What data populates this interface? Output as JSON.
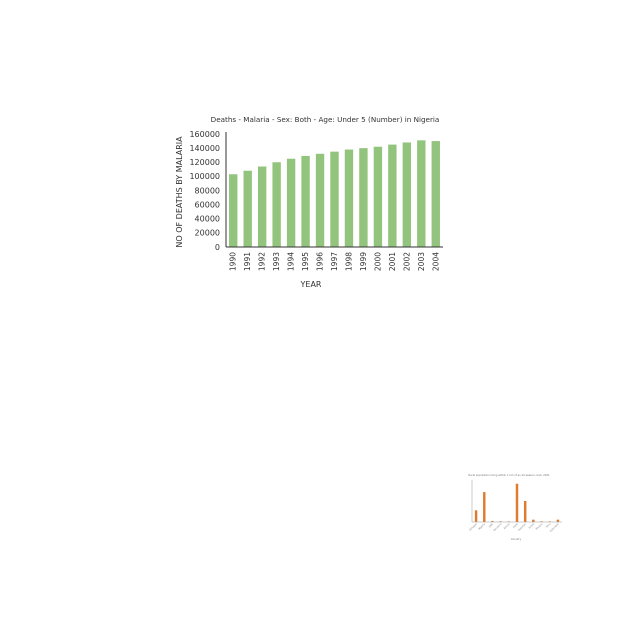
{
  "chart_data": [
    {
      "type": "bar",
      "title": "Deaths - Malaria - Sex: Both - Age: Under 5 (Number) in Nigeria",
      "xlabel": "YEAR",
      "ylabel": "NO OF DEATHS BY MALARIA",
      "categories": [
        "1990",
        "1991",
        "1992",
        "1993",
        "1994",
        "1995",
        "1996",
        "1997",
        "1998",
        "1999",
        "2000",
        "2001",
        "2002",
        "2003",
        "2004"
      ],
      "values": [
        103000,
        108000,
        114000,
        120000,
        125000,
        129000,
        132000,
        135000,
        138000,
        140000,
        142000,
        145000,
        148000,
        151000,
        150000
      ],
      "yticks": [
        "0",
        "20000",
        "40000",
        "60000",
        "80000",
        "100000",
        "120000",
        "140000",
        "160000"
      ],
      "ylim": [
        0,
        160000
      ],
      "grid": false,
      "bar_color": "#93c47d"
    },
    {
      "type": "bar",
      "title": "Rural population living within 1 km of an all-season road, 2021",
      "xlabel": "Country",
      "ylabel": "",
      "categories": [
        "Ethiopia",
        "Nigeria",
        "DRC",
        "Tanzania",
        "Kenya",
        "India",
        "Pakistan",
        "Brazil",
        "Mexico",
        "Peru",
        "Indonesia"
      ],
      "values": [
        25000000,
        64000000,
        2000000,
        1500000,
        1200000,
        82000000,
        45000000,
        5000000,
        1500000,
        1200000,
        5000000
      ],
      "ylim": [
        0,
        90000000
      ],
      "grid": false,
      "bar_color": "#e07b2e"
    }
  ]
}
